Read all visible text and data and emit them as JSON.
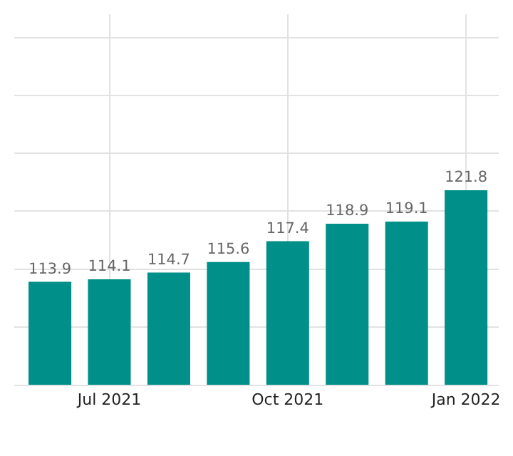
{
  "chart_data": {
    "type": "bar",
    "categories": [
      null,
      "Jul 2021",
      null,
      null,
      "Oct 2021",
      null,
      null,
      "Jan 2022"
    ],
    "values": [
      113.9,
      114.1,
      114.7,
      115.6,
      117.4,
      118.9,
      119.1,
      121.8
    ],
    "color": "#008f89",
    "data_labels": true,
    "ylim": [
      105,
      137
    ],
    "yticks": [
      {
        "value": 105,
        "label": null
      },
      {
        "value": 110,
        "label": null
      },
      {
        "value": 115,
        "label": null
      },
      {
        "value": 120,
        "label": null
      },
      {
        "value": 125,
        "label": null
      },
      {
        "value": 130,
        "label": null
      },
      {
        "value": 135,
        "label": null
      }
    ],
    "tick_labels": "x",
    "grid": true
  }
}
